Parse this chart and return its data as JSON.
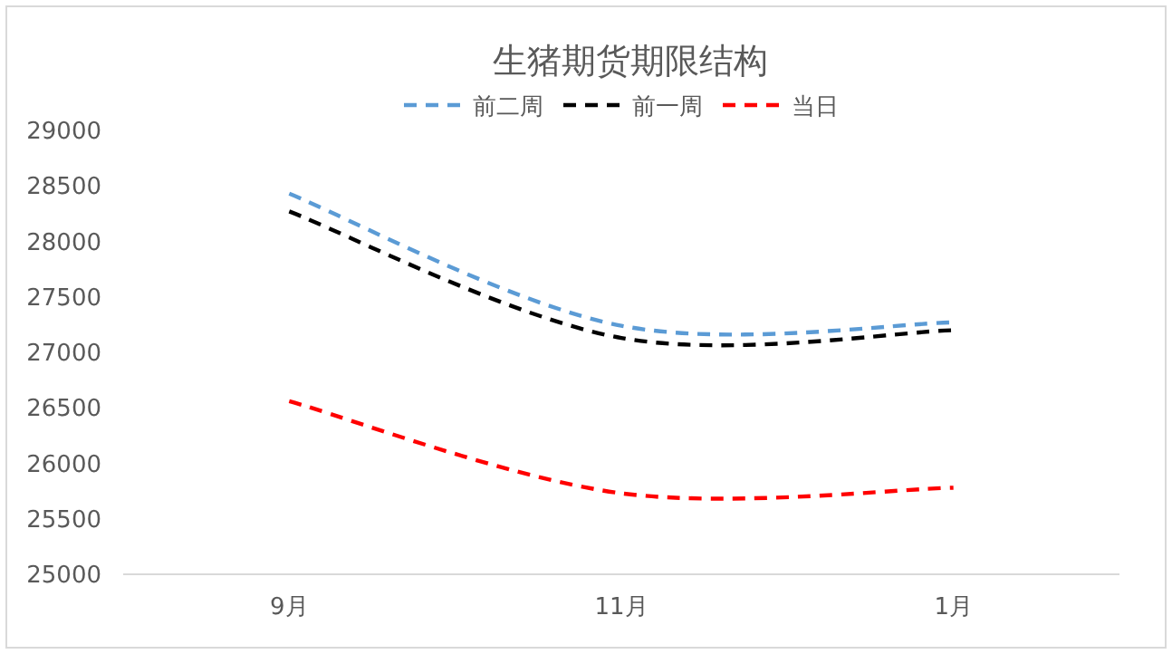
{
  "chart_data": {
    "type": "line",
    "title": "生猪期货期限结构",
    "categories": [
      "9月",
      "11月",
      "1月"
    ],
    "ylim": [
      25000,
      29000
    ],
    "yticks": [
      25000,
      25500,
      26000,
      26500,
      27000,
      27500,
      28000,
      28500,
      29000
    ],
    "grid": false,
    "legend": "top",
    "line_style": "dashed",
    "marker": "none",
    "series": [
      {
        "name": "前二周",
        "color": "#5b9bd5",
        "values": [
          28430,
          27240,
          27270
        ]
      },
      {
        "name": "前一周",
        "color": "#000000",
        "values": [
          28270,
          27130,
          27200
        ]
      },
      {
        "name": "当日",
        "color": "#ff0000",
        "values": [
          26560,
          25730,
          25780
        ]
      }
    ]
  }
}
